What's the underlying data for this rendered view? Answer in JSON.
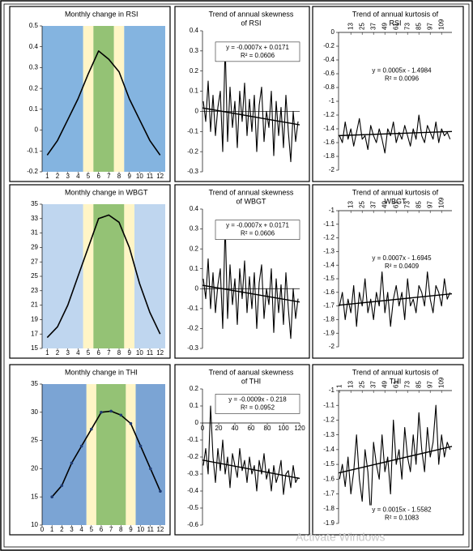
{
  "watermark": "Activate Windows",
  "chart_data": [
    {
      "type": "line",
      "title": [
        "Monthly change in  RSI"
      ],
      "x": [
        1,
        2,
        3,
        4,
        5,
        6,
        7,
        8,
        9,
        10,
        11,
        12
      ],
      "values": [
        -0.12,
        -0.05,
        0.05,
        0.15,
        0.27,
        0.38,
        0.34,
        0.28,
        0.15,
        0.05,
        -0.05,
        -0.12
      ],
      "color": "#000000",
      "xlim": [
        0.5,
        12.5
      ],
      "xticks": [
        1,
        2,
        3,
        4,
        5,
        6,
        7,
        8,
        9,
        10,
        11,
        12
      ],
      "ylim": [
        -0.2,
        0.5
      ],
      "yticks": [
        0.5,
        0.4,
        0.3,
        0.2,
        0.1,
        0,
        -0.1,
        -0.2
      ],
      "bands": [
        {
          "from": 0.5,
          "to": 4.5,
          "color": "#5b9bd5"
        },
        {
          "from": 4.5,
          "to": 5.5,
          "color": "#fff2b3"
        },
        {
          "from": 5.5,
          "to": 7.5,
          "color": "#70ad47"
        },
        {
          "from": 7.5,
          "to": 8.5,
          "color": "#fff2b3"
        },
        {
          "from": 8.5,
          "to": 12.5,
          "color": "#5b9bd5"
        }
      ]
    },
    {
      "type": "line",
      "title": [
        "Trend of  annual skewness",
        "of   RSI"
      ],
      "x": [
        1,
        4,
        7,
        10,
        13,
        16,
        19,
        22,
        25,
        28,
        31,
        34,
        37,
        40,
        43,
        46,
        49,
        52,
        55,
        58,
        61,
        64,
        67,
        70,
        73,
        76,
        79,
        82,
        85,
        88,
        91,
        94,
        97,
        100,
        103,
        106,
        109,
        112,
        115,
        118
      ],
      "values": [
        0.05,
        -0.05,
        0.15,
        -0.1,
        0.08,
        -0.12,
        0.02,
        0.1,
        -0.2,
        0.33,
        -0.15,
        0.12,
        -0.08,
        0.05,
        -0.18,
        0.1,
        -0.05,
        0.14,
        -0.12,
        0.06,
        -0.1,
        0.08,
        -0.2,
        0.03,
        0.12,
        -0.15,
        0,
        -0.08,
        0.1,
        -0.22,
        0.05,
        -0.12,
        0.02,
        -0.18,
        0.08,
        -0.1,
        -0.25,
        0,
        -0.15,
        -0.05
      ],
      "color": "#000000",
      "xlim": [
        0,
        120
      ],
      "ylim": [
        -0.3,
        0.4
      ],
      "yticks": [
        0.4,
        0.3,
        0.2,
        0.1,
        0,
        -0.1,
        -0.2,
        -0.3
      ],
      "trend": {
        "slope": -0.0007,
        "intercept": 0.0171
      },
      "equation": "y = -0.0007x + 0.0171",
      "r2": "R² = 0.0606"
    },
    {
      "type": "line",
      "title": [
        "Trend of annual kurtosis of",
        "RSI"
      ],
      "x": [
        1,
        4,
        7,
        10,
        13,
        16,
        19,
        22,
        25,
        28,
        31,
        34,
        37,
        40,
        43,
        46,
        49,
        52,
        55,
        58,
        61,
        64,
        67,
        70,
        73,
        76,
        79,
        82,
        85,
        88,
        91,
        94,
        97,
        100,
        103,
        106,
        109,
        112,
        115,
        118
      ],
      "values": [
        -1.5,
        -1.6,
        -1.3,
        -1.55,
        -1.4,
        -1.65,
        -1.45,
        -1.25,
        -1.55,
        -1.5,
        -1.7,
        -1.35,
        -1.5,
        -1.6,
        -1.4,
        -1.55,
        -1.75,
        -1.4,
        -1.5,
        -1.3,
        -1.6,
        -1.45,
        -1.55,
        -1.35,
        -1.5,
        -1.65,
        -1.4,
        -1.55,
        -1.2,
        -1.5,
        -1.6,
        -1.35,
        -1.45,
        -1.55,
        -1.3,
        -1.6,
        -1.4,
        -1.5,
        -1.45,
        -1.55
      ],
      "color": "#000000",
      "xlim": [
        0,
        120
      ],
      "xticks": [
        13,
        25,
        37,
        49,
        61,
        73,
        85,
        97,
        109
      ],
      "ylim": [
        -2,
        0
      ],
      "yticks": [
        0,
        -0.2,
        -0.4,
        -0.6,
        -0.8,
        -1,
        -1.2,
        -1.4,
        -1.6,
        -1.8,
        -2
      ],
      "trend": {
        "slope": 0.0005,
        "intercept": -1.4984
      },
      "equation": "y = 0.0005x - 1.4984",
      "r2": "R² = 0.0096"
    },
    {
      "type": "line",
      "title": [
        "Monthly change in WBGT"
      ],
      "x": [
        1,
        2,
        3,
        4,
        5,
        6,
        7,
        8,
        9,
        10,
        11,
        12
      ],
      "values": [
        16.5,
        18,
        21,
        25,
        29,
        33,
        33.5,
        32.5,
        29,
        24,
        20,
        17
      ],
      "color": "#000000",
      "xlim": [
        0.5,
        12.5
      ],
      "xticks": [
        1,
        2,
        3,
        4,
        5,
        6,
        7,
        8,
        9,
        10,
        11,
        12
      ],
      "ylim": [
        15,
        35
      ],
      "yticks": [
        35,
        33,
        31,
        29,
        27,
        25,
        23,
        21,
        19,
        17,
        15
      ],
      "bands": [
        {
          "from": 0.5,
          "to": 4.5,
          "color": "#a9c8ea"
        },
        {
          "from": 4.5,
          "to": 5.5,
          "color": "#fff2b3"
        },
        {
          "from": 5.5,
          "to": 8.5,
          "color": "#70ad47"
        },
        {
          "from": 8.5,
          "to": 9.5,
          "color": "#fff2b3"
        },
        {
          "from": 9.5,
          "to": 12.5,
          "color": "#a9c8ea"
        }
      ]
    },
    {
      "type": "line",
      "title": [
        "Trend of  annual skewness",
        "of WBGT"
      ],
      "x": [
        1,
        4,
        7,
        10,
        13,
        16,
        19,
        22,
        25,
        28,
        31,
        34,
        37,
        40,
        43,
        46,
        49,
        52,
        55,
        58,
        61,
        64,
        67,
        70,
        73,
        76,
        79,
        82,
        85,
        88,
        91,
        94,
        97,
        100,
        103,
        106,
        109,
        112,
        115,
        118
      ],
      "values": [
        0.05,
        -0.05,
        0.15,
        -0.1,
        0.08,
        -0.12,
        0.02,
        0.1,
        -0.2,
        0.33,
        -0.15,
        0.12,
        -0.08,
        0.05,
        -0.18,
        0.1,
        -0.05,
        0.14,
        -0.12,
        0.06,
        -0.1,
        0.08,
        -0.2,
        0.03,
        0.12,
        -0.15,
        0,
        -0.08,
        0.1,
        -0.22,
        0.05,
        -0.12,
        0.02,
        -0.18,
        0.08,
        -0.1,
        -0.25,
        0,
        -0.15,
        -0.05
      ],
      "color": "#000000",
      "xlim": [
        0,
        120
      ],
      "ylim": [
        -0.3,
        0.4
      ],
      "yticks": [
        0.4,
        0.3,
        0.2,
        0.1,
        0,
        -0.1,
        -0.2,
        -0.3
      ],
      "trend": {
        "slope": -0.0007,
        "intercept": 0.0171
      },
      "equation": "y = -0.0007x + 0.0171",
      "r2": "R² = 0.0606"
    },
    {
      "type": "line",
      "title": [
        "Trend of annual kurtosis of",
        "WBGT"
      ],
      "x": [
        1,
        4,
        7,
        10,
        13,
        16,
        19,
        22,
        25,
        28,
        31,
        34,
        37,
        40,
        43,
        46,
        49,
        52,
        55,
        58,
        61,
        64,
        67,
        70,
        73,
        76,
        79,
        82,
        85,
        88,
        91,
        94,
        97,
        100,
        103,
        106,
        109,
        112,
        115,
        118
      ],
      "values": [
        -1.7,
        -1.6,
        -1.8,
        -1.65,
        -1.75,
        -1.55,
        -1.85,
        -1.6,
        -1.7,
        -1.5,
        -1.75,
        -1.65,
        -1.8,
        -1.6,
        -1.7,
        -1.45,
        -1.75,
        -1.6,
        -1.85,
        -1.65,
        -1.55,
        -1.7,
        -1.6,
        -1.8,
        -1.5,
        -1.7,
        -1.65,
        -1.75,
        -1.55,
        -1.6,
        -1.7,
        -1.45,
        -1.65,
        -1.75,
        -1.55,
        -1.6,
        -1.7,
        -1.5,
        -1.65,
        -1.6
      ],
      "color": "#000000",
      "xlim": [
        0,
        120
      ],
      "xticks": [
        13,
        25,
        37,
        49,
        61,
        73,
        85,
        97,
        109
      ],
      "ylim": [
        -2,
        -1
      ],
      "yticks": [
        -1,
        -1.1,
        -1.2,
        -1.3,
        -1.4,
        -1.5,
        -1.6,
        -1.7,
        -1.8,
        -1.9,
        -2
      ],
      "trend": {
        "slope": 0.0007,
        "intercept": -1.6945
      },
      "equation": "y = 0.0007x - 1.6945",
      "r2": "R² = 0.0409"
    },
    {
      "type": "line",
      "title": [
        "Monthly change in THI"
      ],
      "x": [
        1,
        2,
        3,
        4,
        5,
        6,
        7,
        8,
        9,
        10,
        11,
        12
      ],
      "values": [
        15,
        17,
        21,
        24,
        27,
        30,
        30.2,
        29.5,
        28,
        24,
        20,
        16
      ],
      "color": "#000000",
      "markers": true,
      "xlim": [
        0,
        12.5
      ],
      "xticks": [
        0,
        1,
        2,
        3,
        4,
        5,
        6,
        7,
        8,
        9,
        10,
        11,
        12
      ],
      "ylim": [
        10,
        35
      ],
      "yticks": [
        35,
        30,
        25,
        20,
        15,
        10
      ],
      "bands": [
        {
          "from": 0,
          "to": 4.5,
          "color": "#4f86c6"
        },
        {
          "from": 4.5,
          "to": 5.5,
          "color": "#fff2b3"
        },
        {
          "from": 5.5,
          "to": 8.5,
          "color": "#70ad47"
        },
        {
          "from": 8.5,
          "to": 9.5,
          "color": "#fff2b3"
        },
        {
          "from": 9.5,
          "to": 12.5,
          "color": "#4f86c6"
        }
      ]
    },
    {
      "type": "line",
      "title": [
        "Trend of aanual skewness",
        "of THI"
      ],
      "x": [
        1,
        4,
        7,
        10,
        13,
        16,
        19,
        22,
        25,
        28,
        31,
        34,
        37,
        40,
        43,
        46,
        49,
        52,
        55,
        58,
        61,
        64,
        67,
        70,
        73,
        76,
        79,
        82,
        85,
        88,
        91,
        94,
        97,
        100,
        103,
        106,
        109,
        112,
        115,
        118
      ],
      "values": [
        -0.25,
        -0.15,
        -0.3,
        0.1,
        -0.2,
        -0.35,
        -0.15,
        -0.28,
        -0.1,
        -0.3,
        -0.2,
        -0.38,
        -0.18,
        -0.25,
        -0.32,
        -0.15,
        -0.28,
        -0.22,
        -0.35,
        -0.2,
        -0.3,
        -0.25,
        -0.4,
        -0.22,
        -0.3,
        -0.18,
        -0.33,
        -0.27,
        -0.4,
        -0.25,
        -0.35,
        -0.3,
        -0.22,
        -0.42,
        -0.3,
        -0.28,
        -0.38,
        -0.25,
        -0.35,
        -0.32
      ],
      "color": "#000000",
      "xlim": [
        0,
        120
      ],
      "xticks": [
        0,
        20,
        40,
        60,
        80,
        100,
        120
      ],
      "ylim": [
        -0.6,
        0.2
      ],
      "yticks": [
        0.2,
        0.1,
        0,
        -0.1,
        -0.2,
        -0.3,
        -0.4,
        -0.5,
        -0.6
      ],
      "trend": {
        "slope": -0.0009,
        "intercept": -0.218
      },
      "equation": "y = -0.0009x - 0.218",
      "r2": "R² = 0.0952"
    },
    {
      "type": "line",
      "title": [
        "Trend of annual kurtosis of",
        "THI"
      ],
      "x": [
        1,
        4,
        7,
        10,
        13,
        16,
        19,
        22,
        25,
        28,
        31,
        34,
        37,
        40,
        43,
        46,
        49,
        52,
        55,
        58,
        61,
        64,
        67,
        70,
        73,
        76,
        79,
        82,
        85,
        88,
        91,
        94,
        97,
        100,
        103,
        106,
        109,
        112,
        115,
        118
      ],
      "values": [
        -1.6,
        -1.5,
        -1.65,
        -1.45,
        -1.7,
        -1.55,
        -1.3,
        -1.6,
        -1.75,
        -1.4,
        -1.55,
        -1.85,
        -1.35,
        -1.5,
        -1.6,
        -1.3,
        -1.55,
        -1.45,
        -1.7,
        -1.2,
        -1.5,
        -1.4,
        -1.6,
        -1.25,
        -1.45,
        -1.55,
        -1.3,
        -1.5,
        -1.15,
        -1.4,
        -1.55,
        -1.25,
        -1.45,
        -1.35,
        -1.1,
        -1.5,
        -1.3,
        -1.45,
        -1.35,
        -1.4
      ],
      "color": "#000000",
      "xlim": [
        0,
        120
      ],
      "xticks": [
        1,
        13,
        25,
        37,
        49,
        61,
        73,
        85,
        97,
        109
      ],
      "ylim": [
        -1.9,
        -1
      ],
      "yticks": [
        -1,
        -1.1,
        -1.2,
        -1.3,
        -1.4,
        -1.5,
        -1.6,
        -1.7,
        -1.8,
        -1.9
      ],
      "trend": {
        "slope": 0.0015,
        "intercept": -1.5582
      },
      "equation": "y = 0.0015x - 1.5582",
      "r2": "R² = 0.1083"
    }
  ]
}
